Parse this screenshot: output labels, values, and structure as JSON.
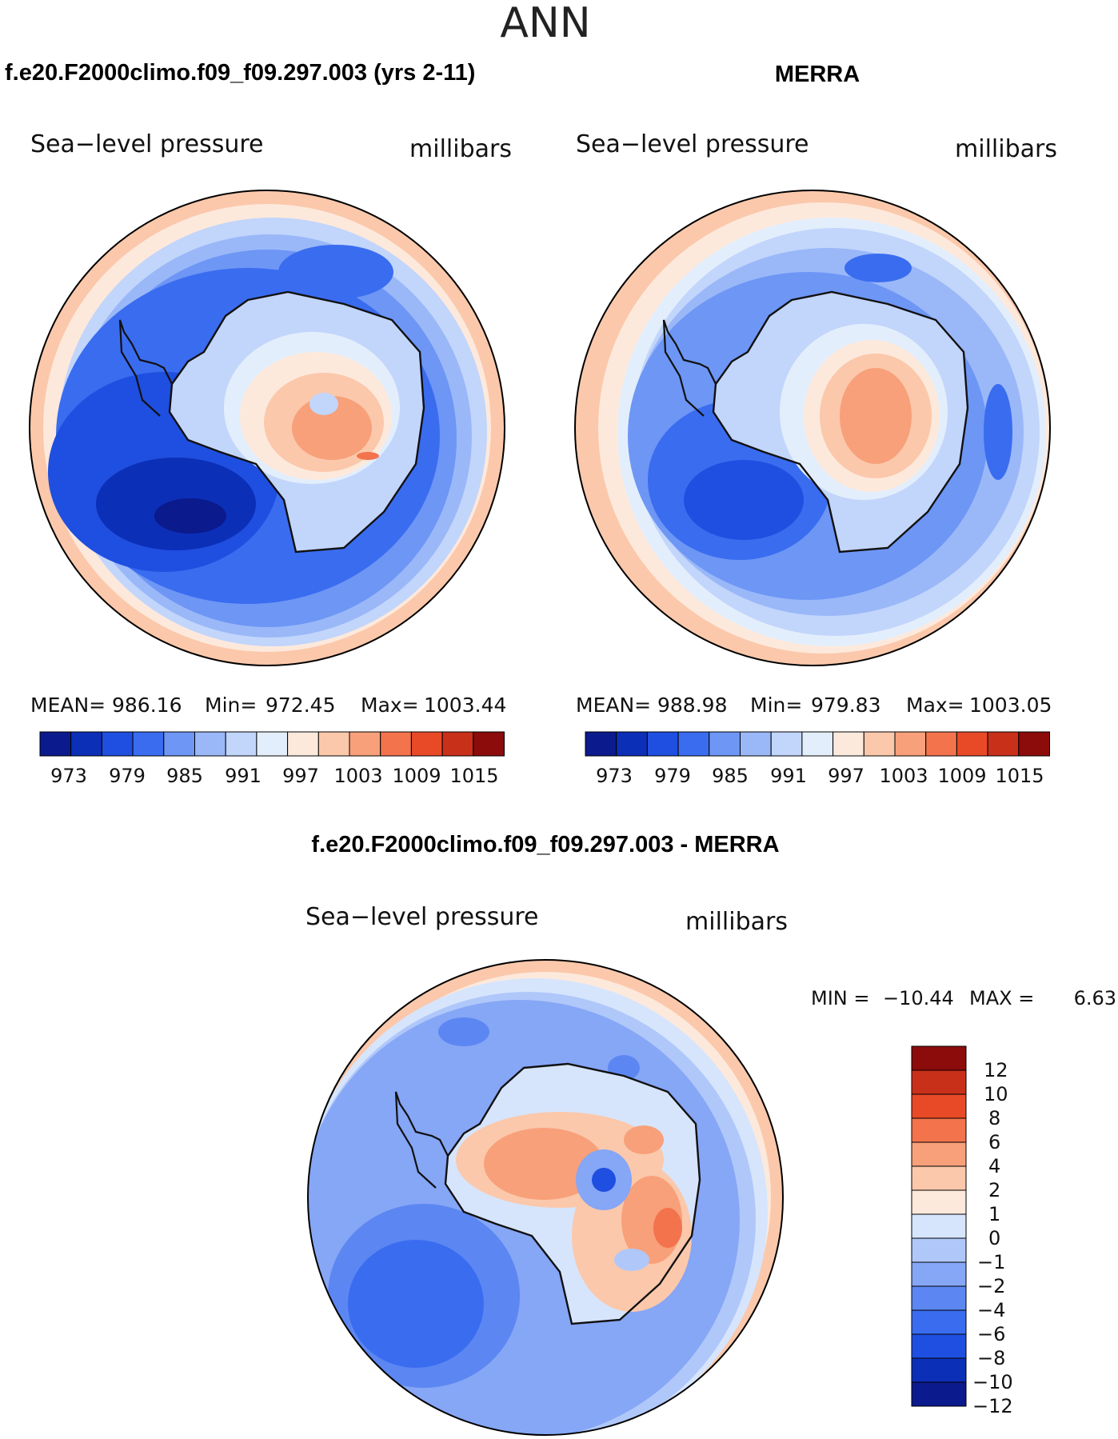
{
  "page": {
    "title": "ANN"
  },
  "palette": {
    "abs": [
      "#0b1a8c",
      "#0c2fb8",
      "#1f4fe0",
      "#3a6cf0",
      "#6d96f5",
      "#9ab8f8",
      "#c2d5fb",
      "#e3eefc",
      "#fde9dc",
      "#fbc8ab",
      "#f8a07a",
      "#f3734d",
      "#e84a27",
      "#c9301a",
      "#8c0b0b"
    ],
    "diff": [
      "#0b1a8c",
      "#0c2fb8",
      "#1f4fe0",
      "#3a6cf0",
      "#5c87f2",
      "#86a6f6",
      "#b0c7fa",
      "#d6e5fc",
      "#fde9dc",
      "#fbc8ab",
      "#f8a07a",
      "#f3734d",
      "#e84a27",
      "#c9301a",
      "#8c0b0b"
    ],
    "coast": "#111111"
  },
  "panels": {
    "model": {
      "heading": "f.e20.F2000climo.f09_f09.297.003 (yrs 2-11)",
      "variable": "Sea−level pressure",
      "units": "millibars",
      "stats": {
        "mean_label": "MEAN=",
        "mean": "986.16",
        "min_label": "Min=",
        "min": "972.45",
        "max_label": "Max=",
        "max": "1003.44"
      },
      "colorbar_labels": [
        "973",
        "979",
        "985",
        "991",
        "997",
        "1003",
        "1009",
        "1015"
      ]
    },
    "obs": {
      "heading": "MERRA",
      "variable": "Sea−level pressure",
      "units": "millibars",
      "stats": {
        "mean_label": "MEAN=",
        "mean": "988.98",
        "min_label": "Min=",
        "min": "979.83",
        "max_label": "Max=",
        "max": "1003.05"
      },
      "colorbar_labels": [
        "973",
        "979",
        "985",
        "991",
        "997",
        "1003",
        "1009",
        "1015"
      ]
    },
    "diff": {
      "heading": "f.e20.F2000climo.f09_f09.297.003 - MERRA",
      "variable": "Sea−level pressure",
      "units": "millibars",
      "stats": {
        "min_label": "MIN =",
        "min": "−10.44",
        "max_label": "MAX =",
        "max": "6.63"
      },
      "colorbar_labels": [
        "12",
        "10",
        "8",
        "6",
        "4",
        "2",
        "1",
        "0",
        "−1",
        "−2",
        "−4",
        "−6",
        "−8",
        "−10",
        "−12"
      ]
    }
  }
}
